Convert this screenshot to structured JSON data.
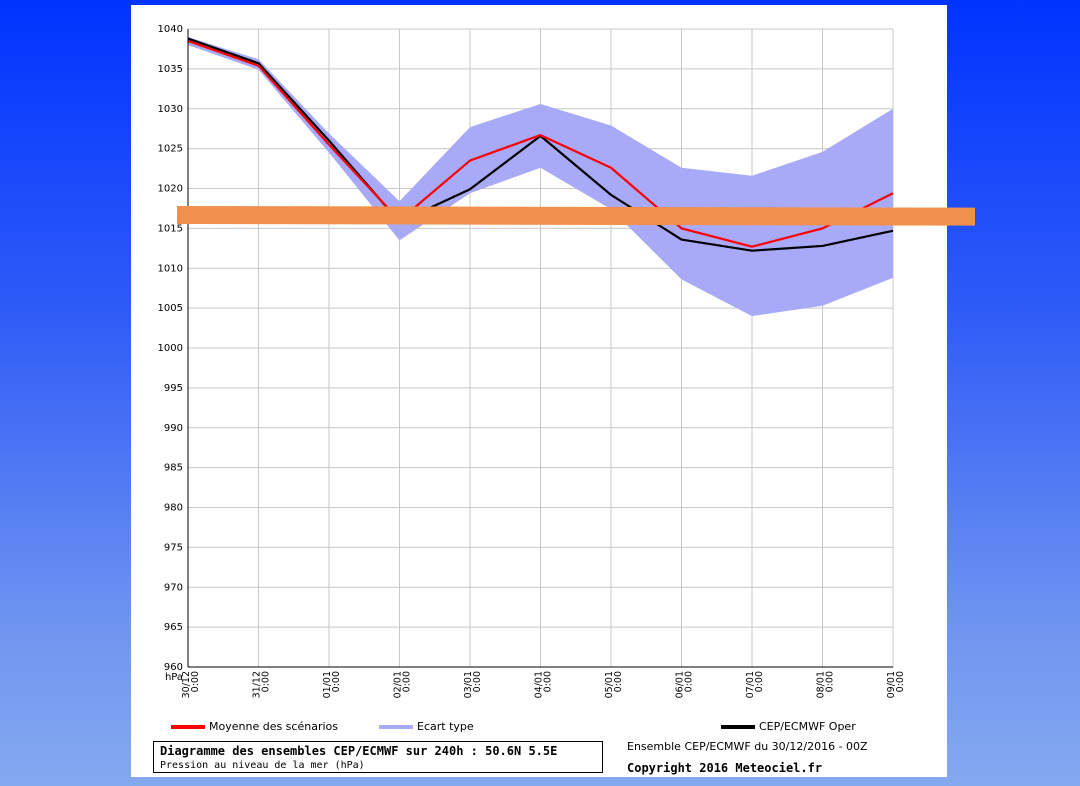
{
  "chart_data": {
    "type": "line",
    "title": "Diagramme des ensembles CEP/ECMWF sur 240h : 50.6N 5.5E",
    "subtitle": "Pression au niveau de la mer (hPa)",
    "ylabel": "hPa",
    "ylim": [
      960,
      1040
    ],
    "yticks": [
      1040,
      1035,
      1030,
      1025,
      1020,
      1015,
      1010,
      1005,
      1000,
      995,
      990,
      985,
      980,
      975,
      970,
      965,
      960
    ],
    "categories": [
      "30/12 0:00",
      "31/12 0:00",
      "01/01 0:00",
      "02/01 0:00",
      "03/01 0:00",
      "04/01 0:00",
      "05/01 0:00",
      "06/01 0:00",
      "07/01 0:00",
      "08/01 0:00",
      "09/01 0:00"
    ],
    "x_labels": [
      {
        "date": "30/12",
        "time": "0:00"
      },
      {
        "date": "31/12",
        "time": "0:00"
      },
      {
        "date": "01/01",
        "time": "0:00"
      },
      {
        "date": "02/01",
        "time": "0:00"
      },
      {
        "date": "03/01",
        "time": "0:00"
      },
      {
        "date": "04/01",
        "time": "0:00"
      },
      {
        "date": "05/01",
        "time": "0:00"
      },
      {
        "date": "06/01",
        "time": "0:00"
      },
      {
        "date": "07/01",
        "time": "0:00"
      },
      {
        "date": "08/01",
        "time": "0:00"
      },
      {
        "date": "09/01",
        "time": "0:00"
      }
    ],
    "grid": true,
    "series": [
      {
        "name": "Moyenne des scénarios",
        "color": "#ff0000",
        "values": [
          1038.5,
          1035.4,
          1025.5,
          1016.0,
          1023.5,
          1026.7,
          1022.6,
          1015.0,
          1012.7,
          1015.0,
          1019.4
        ]
      },
      {
        "name": "CEP/ECMWF Oper",
        "color": "#000000",
        "values": [
          1038.8,
          1035.7,
          1026.0,
          1015.8,
          1019.9,
          1026.6,
          1019.2,
          1013.6,
          1012.2,
          1012.8,
          1014.7
        ]
      }
    ],
    "band": {
      "name": "Ecart type",
      "color": "#a8aaf8",
      "upper": [
        1039.0,
        1036.2,
        1026.9,
        1018.4,
        1027.7,
        1030.6,
        1027.9,
        1022.6,
        1021.6,
        1024.6,
        1030.0
      ],
      "lower": [
        1038.0,
        1034.9,
        1024.5,
        1013.5,
        1019.4,
        1022.6,
        1017.4,
        1008.6,
        1004.0,
        1005.3,
        1008.8
      ]
    },
    "legend_placement": "bottom",
    "run_info": "Ensemble CEP/ECMWF du 30/12/2016 - 00Z",
    "copyright": "Copyright 2016 Meteociel.fr",
    "annotation": {
      "type": "horizontal-bar",
      "color": "#f0904c",
      "y_value": 1015.9
    }
  }
}
